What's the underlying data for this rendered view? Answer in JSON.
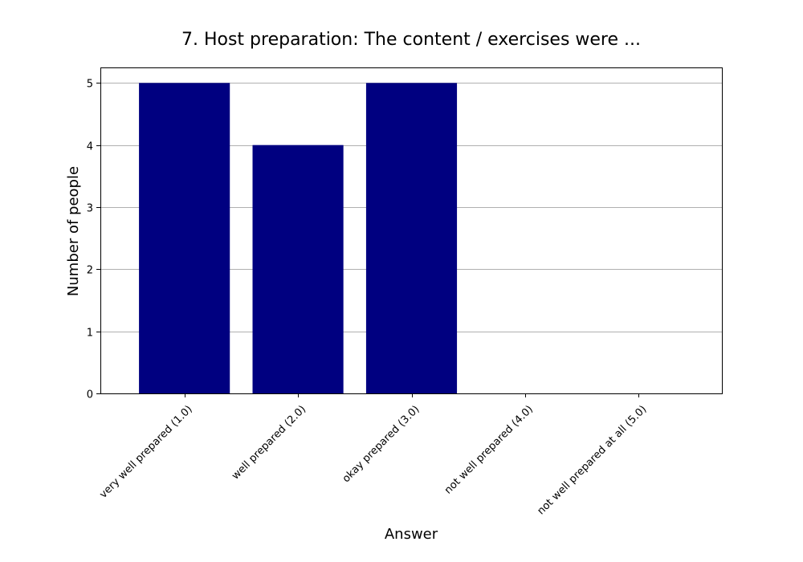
{
  "chart_data": {
    "type": "bar",
    "title": "7. Host preparation: The content / exercises were ...",
    "xlabel": "Answer",
    "ylabel": "Number of people",
    "categories": [
      "very well prepared (1.0)",
      "well prepared (2.0)",
      "okay prepared (3.0)",
      "not well prepared (4.0)",
      "not well prepared at all (5.0)"
    ],
    "values": [
      5,
      4,
      5,
      0,
      0
    ],
    "ylim": [
      0,
      5.25
    ],
    "yticks": [
      0,
      1,
      2,
      3,
      4,
      5
    ],
    "grid": true,
    "grid_axis": "y",
    "bar_color": "#000080",
    "x_tick_rotation": 45
  }
}
